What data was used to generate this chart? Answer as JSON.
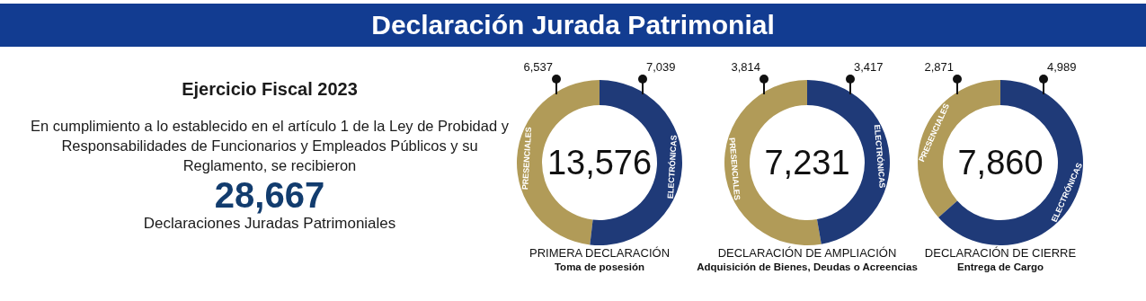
{
  "chart_data": [
    {
      "type": "other",
      "title": "Declaración Jurada Patrimonial",
      "subtitle": "Ejercicio Fiscal 2023",
      "annotations": [
        "En cumplimiento a lo establecido en el artículo 1 de la Ley de Probidad y Responsabilidades de Funcionarios y Empleados Públicos y su Reglamento, se recibieron",
        "28,667",
        "Declaraciones Juradas Patrimoniales"
      ]
    },
    {
      "type": "donut",
      "title": "PRIMERA DECLARACIÓN",
      "subtitle": "Toma de posesión",
      "categories": [
        "PRESENCIALES",
        "ELECTRÓNICAS"
      ],
      "values": [
        6537,
        7039
      ],
      "value_labels": [
        "6,537",
        "7,039"
      ],
      "colors": [
        "#b19b58",
        "#1f3a78"
      ],
      "annotations": [
        "13,576"
      ]
    },
    {
      "type": "donut",
      "title": "DECLARACIÓN DE AMPLIACIÓN",
      "subtitle": "Adquisición de Bienes, Deudas o Acreencias",
      "categories": [
        "PRESENCIALES",
        "ELECTRÓNICAS"
      ],
      "values": [
        3814,
        3417
      ],
      "value_labels": [
        "3,814",
        "3,417"
      ],
      "colors": [
        "#b19b58",
        "#1f3a78"
      ],
      "annotations": [
        "7,231"
      ]
    },
    {
      "type": "donut",
      "title": "DECLARACIÓN DE CIERRE",
      "subtitle": "Entrega de Cargo",
      "categories": [
        "PRESENCIALES",
        "ELECTRÓNICAS"
      ],
      "values": [
        2871,
        4989
      ],
      "value_labels": [
        "2,871",
        "4,989"
      ],
      "colors": [
        "#b19b58",
        "#1f3a78"
      ],
      "annotations": [
        "7,860"
      ]
    }
  ]
}
